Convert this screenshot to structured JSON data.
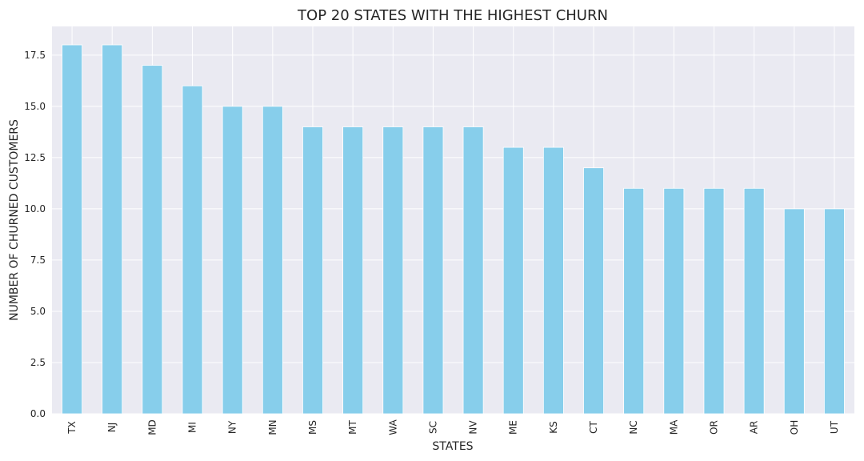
{
  "chart_data": {
    "type": "bar",
    "title": "TOP 20 STATES WITH THE HIGHEST CHURN",
    "xlabel": "STATES",
    "ylabel": "NUMBER OF CHURNED CUSTOMERS",
    "categories": [
      "TX",
      "NJ",
      "MD",
      "MI",
      "NY",
      "MN",
      "MS",
      "MT",
      "WA",
      "SC",
      "NV",
      "ME",
      "KS",
      "CT",
      "NC",
      "MA",
      "OR",
      "AR",
      "OH",
      "UT"
    ],
    "values": [
      18,
      18,
      17,
      16,
      15,
      15,
      14,
      14,
      14,
      14,
      14,
      13,
      13,
      12,
      11,
      11,
      11,
      11,
      10,
      10
    ],
    "ylim": [
      0,
      18.9
    ],
    "yticks": [
      0.0,
      2.5,
      5.0,
      7.5,
      10.0,
      12.5,
      15.0,
      17.5
    ],
    "ytick_labels": [
      "0.0",
      "2.5",
      "5.0",
      "7.5",
      "10.0",
      "12.5",
      "15.0",
      "17.5"
    ],
    "grid": true,
    "colors": {
      "bar": "#87ceeb",
      "plot_background": "#eaeaf2",
      "grid": "#ffffff"
    }
  }
}
